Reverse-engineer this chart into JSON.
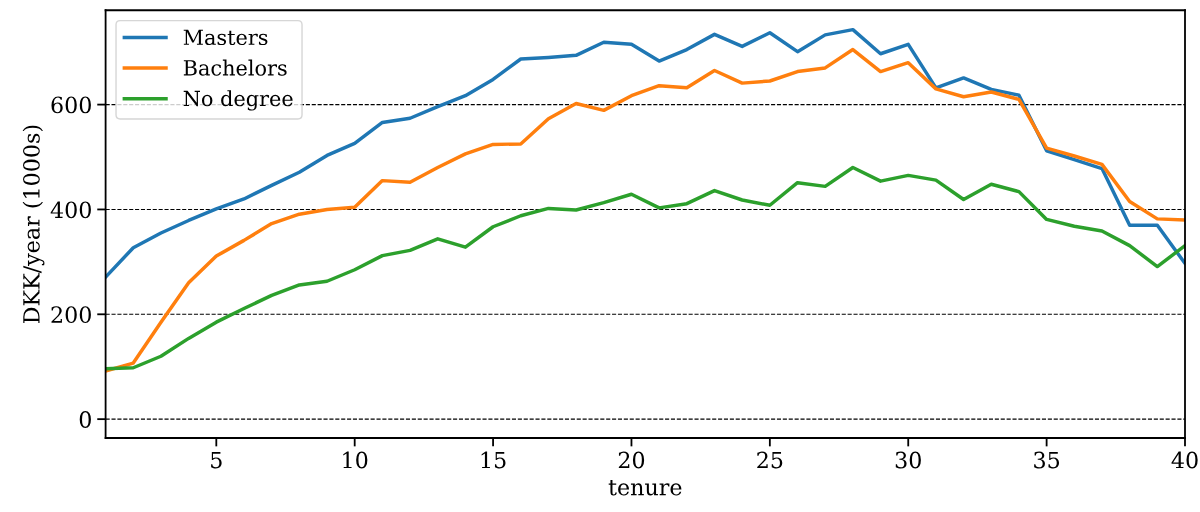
{
  "chart_data": {
    "type": "line",
    "xlabel": "tenure",
    "ylabel": "DKK/year (1000s)",
    "x": [
      1,
      2,
      3,
      4,
      5,
      6,
      7,
      8,
      9,
      10,
      11,
      12,
      13,
      14,
      15,
      16,
      17,
      18,
      19,
      20,
      21,
      22,
      23,
      24,
      25,
      26,
      27,
      28,
      29,
      30,
      31,
      32,
      33,
      34,
      35,
      36,
      37,
      38,
      39,
      40
    ],
    "series": [
      {
        "name": "Masters",
        "color": "#1f77b4",
        "values": [
          271,
          327,
          355,
          379,
          401,
          420,
          446,
          471,
          503,
          526,
          566,
          574,
          596,
          617,
          648,
          687,
          690,
          694,
          719,
          715,
          683,
          705,
          734,
          711,
          737,
          701,
          733,
          743,
          697,
          715,
          632,
          651,
          629,
          618,
          512,
          495,
          478,
          370,
          370,
          297
        ]
      },
      {
        "name": "Bachelors",
        "color": "#ff7f0e",
        "values": [
          92,
          107,
          185,
          260,
          311,
          341,
          373,
          391,
          400,
          404,
          455,
          452,
          480,
          506,
          524,
          525,
          573,
          602,
          589,
          617,
          636,
          632,
          665,
          641,
          645,
          663,
          670,
          705,
          663,
          680,
          630,
          615,
          624,
          610,
          517,
          502,
          486,
          415,
          382,
          380
        ]
      },
      {
        "name": "No degree",
        "color": "#2ca02c",
        "values": [
          96,
          98,
          120,
          154,
          185,
          211,
          236,
          256,
          263,
          285,
          312,
          322,
          344,
          328,
          367,
          388,
          402,
          399,
          413,
          429,
          403,
          411,
          436,
          418,
          408,
          451,
          444,
          480,
          454,
          465,
          456,
          419,
          448,
          434,
          381,
          368,
          359,
          331,
          291,
          331
        ]
      }
    ],
    "xlim": [
      1,
      40
    ],
    "xticks": [
      5,
      10,
      15,
      20,
      25,
      30,
      35,
      40
    ],
    "ylim": [
      -36,
      780
    ],
    "yticks": [
      0,
      200,
      400,
      600
    ],
    "grid": "y",
    "legend": "top left",
    "marker": "none",
    "line_style": "solid"
  }
}
